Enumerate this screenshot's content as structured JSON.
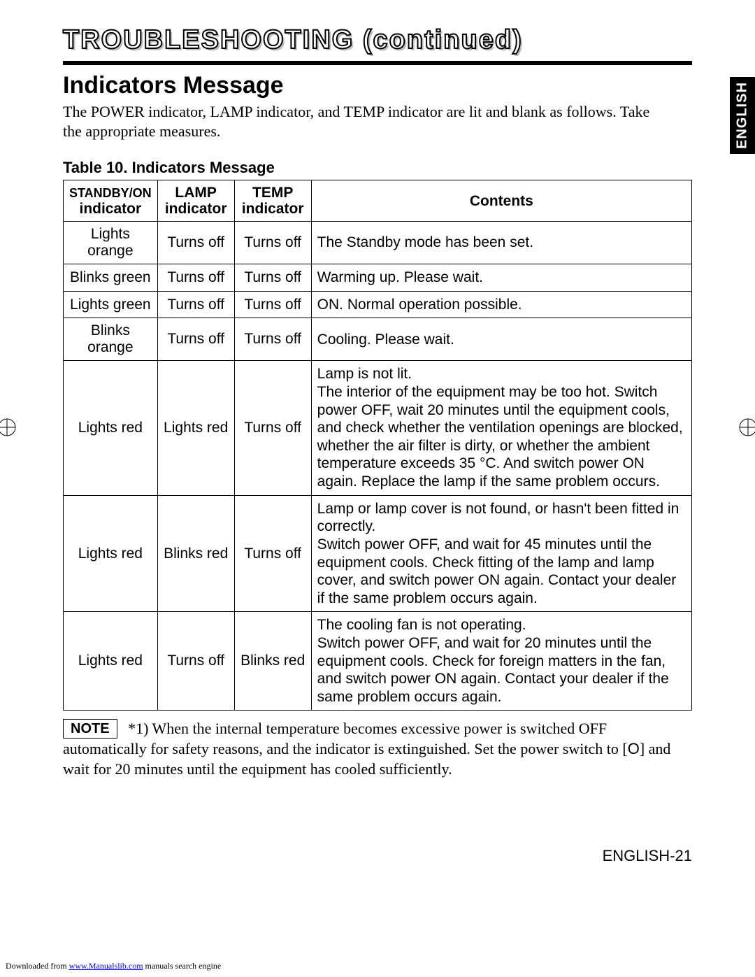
{
  "page_title": "TROUBLESHOOTING (continued)",
  "section_heading": "Indicators Message",
  "intro_text": "The POWER indicator, LAMP indicator, and TEMP indicator are lit and blank as follows. Take the appropriate measures.",
  "table_caption": "Table 10. Indicators Message",
  "side_tab": "ENGLISH",
  "columns": {
    "standby_line1": "STANDBY/ON",
    "standby_line2": "indicator",
    "lamp_line1": "LAMP",
    "lamp_line2": "indicator",
    "temp_line1": "TEMP",
    "temp_line2": "indicator",
    "contents": "Contents"
  },
  "rows": [
    {
      "standby": "Lights orange",
      "lamp": "Turns off",
      "temp": "Turns off",
      "contents": "The Standby mode has been set."
    },
    {
      "standby": "Blinks green",
      "lamp": "Turns off",
      "temp": "Turns off",
      "contents": "Warming up. Please wait."
    },
    {
      "standby": "Lights green",
      "lamp": "Turns off",
      "temp": "Turns off",
      "contents": "ON. Normal operation possible."
    },
    {
      "standby": "Blinks orange",
      "lamp": "Turns off",
      "temp": "Turns off",
      "contents": "Cooling. Please wait."
    },
    {
      "standby": "Lights red",
      "lamp": "Lights red",
      "temp": "Turns off",
      "contents": "Lamp is not lit.\nThe interior of the equipment may be too hot. Switch power OFF, wait 20 minutes until the equipment cools, and check whether the ventilation openings are blocked, whether the air filter is dirty, or whether the ambient temperature exceeds 35 °C. And switch power ON again. Replace the lamp if the same problem occurs."
    },
    {
      "standby": "Lights red",
      "lamp": "Blinks red",
      "temp": "Turns off",
      "contents": "Lamp or lamp cover is not found, or hasn't been fitted in correctly.\nSwitch power OFF, and wait for 45 minutes until the equipment cools. Check fitting of the lamp and lamp cover, and switch power ON again. Contact your dealer if the same problem occurs again."
    },
    {
      "standby": "Lights red",
      "lamp": "Turns off",
      "temp": "Blinks red",
      "contents": "The cooling fan is not operating.\nSwitch power OFF, and wait for 20 minutes until the equipment cools. Check for foreign matters in the fan, and switch power ON again. Contact your dealer if the same problem occurs again."
    }
  ],
  "note_label": "NOTE",
  "note_text_before": "*1) When the internal temperature becomes excessive power is switched OFF automatically for safety reasons, and the indicator is extinguished. Set the power switch to [",
  "note_symbol": "O",
  "note_text_after": "] and wait for 20 minutes until the equipment has cooled sufficiently.",
  "footer_page": "ENGLISH-21",
  "download_prefix": "Downloaded from ",
  "download_link_text": "www.Manualslib.com",
  "download_suffix": " manuals search engine",
  "colors": {
    "text": "#000000",
    "background": "#ffffff",
    "tab_bg": "#000000",
    "tab_fg": "#ffffff",
    "title_shadow": "#c0c0c0",
    "link": "#0000ee"
  }
}
